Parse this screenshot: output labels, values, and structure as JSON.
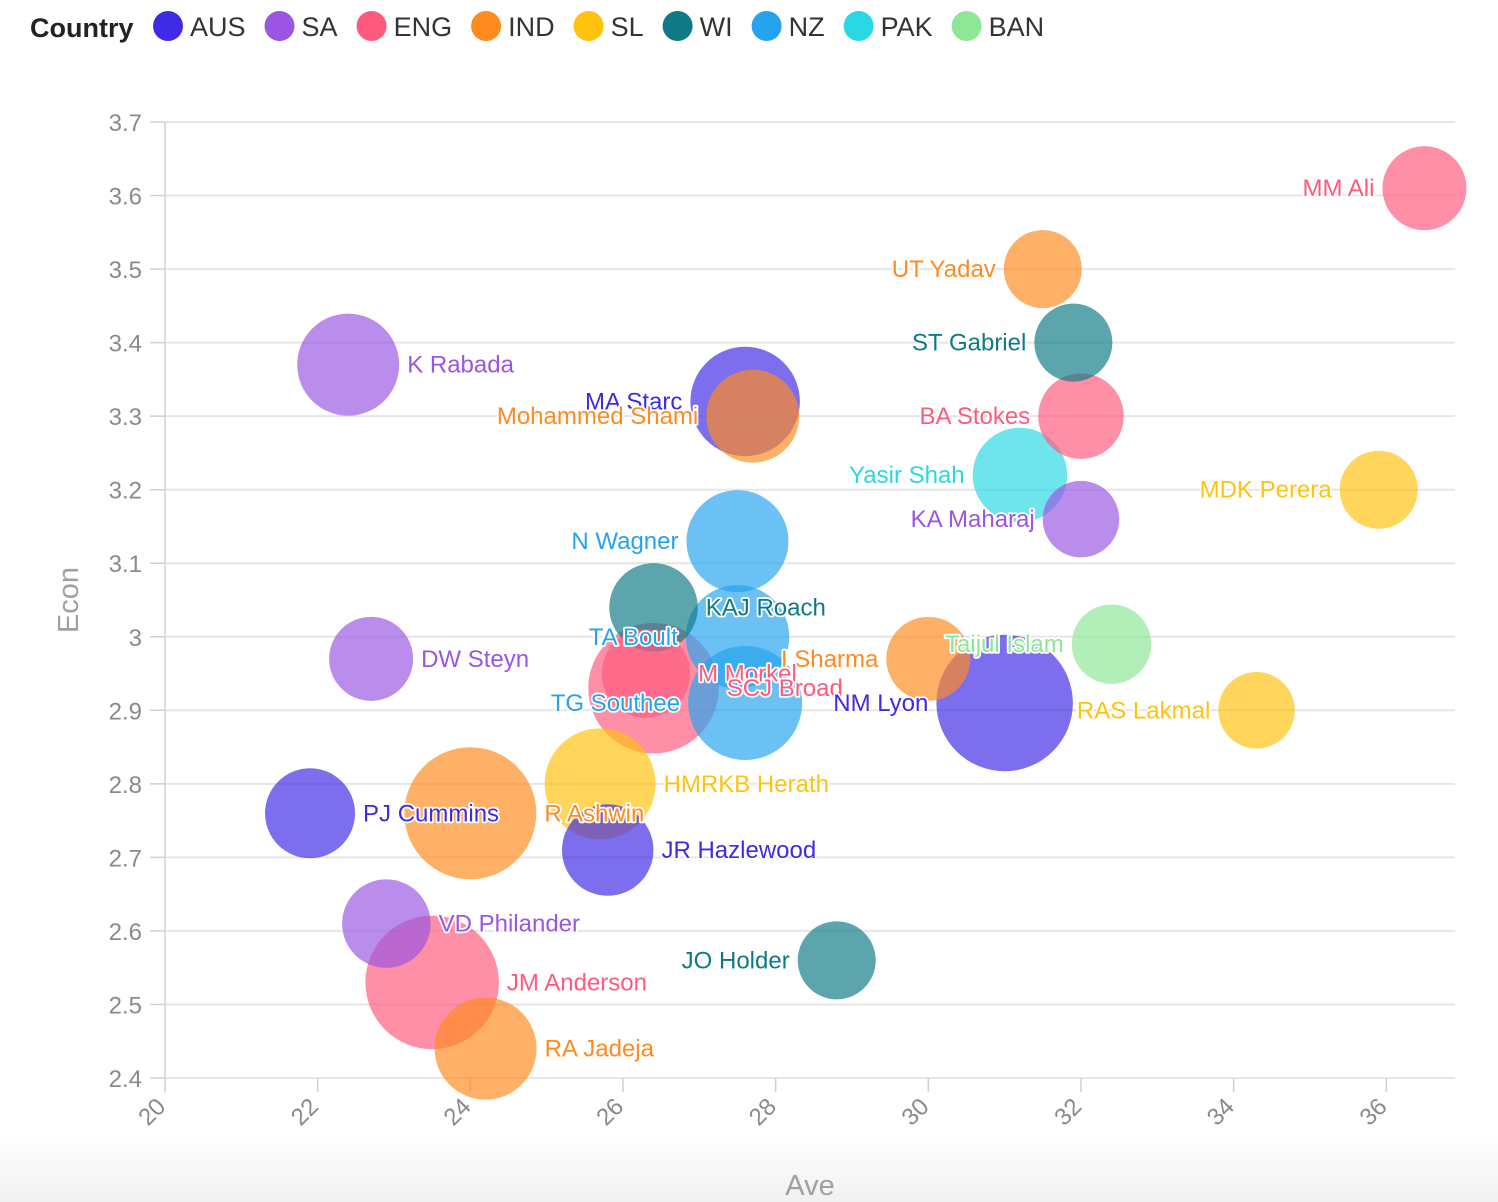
{
  "legend": {
    "title": "Country",
    "items": [
      {
        "label": "AUS",
        "color": "#3f2ae6"
      },
      {
        "label": "SA",
        "color": "#9a55e3"
      },
      {
        "label": "ENG",
        "color": "#ff5a7e"
      },
      {
        "label": "IND",
        "color": "#ff8a1f"
      },
      {
        "label": "SL",
        "color": "#ffc20e"
      },
      {
        "label": "WI",
        "color": "#0f7a85"
      },
      {
        "label": "NZ",
        "color": "#25a3ee"
      },
      {
        "label": "PAK",
        "color": "#2ad8e3"
      },
      {
        "label": "BAN",
        "color": "#8ee697"
      }
    ]
  },
  "chart_data": {
    "type": "scatter",
    "xlabel": "Ave",
    "ylabel": "Econ",
    "xlim": [
      20,
      36.9
    ],
    "ylim": [
      2.4,
      3.7
    ],
    "x_ticks": [
      "20",
      "22",
      "24",
      "26",
      "28",
      "30",
      "32",
      "34",
      "36"
    ],
    "y_ticks": [
      "2.4",
      "2.5",
      "2.6",
      "2.7",
      "2.8",
      "2.9",
      "3",
      "3.1",
      "3.2",
      "3.3",
      "3.4",
      "3.5",
      "3.6",
      "3.7"
    ],
    "grid": "horizontal",
    "legend_position": "top",
    "points": [
      {
        "label": "MM Ali",
        "country": "ENG",
        "x": 36.5,
        "y": 3.61,
        "size": 5.6,
        "side": "left"
      },
      {
        "label": "UT Yadav",
        "country": "IND",
        "x": 31.5,
        "y": 3.5,
        "size": 5.2,
        "side": "left"
      },
      {
        "label": "ST Gabriel",
        "country": "WI",
        "x": 31.9,
        "y": 3.4,
        "size": 5.2,
        "side": "left"
      },
      {
        "label": "K Rabada",
        "country": "SA",
        "x": 22.4,
        "y": 3.37,
        "size": 6.8,
        "side": "right"
      },
      {
        "label": "MA Starc",
        "country": "AUS",
        "x": 27.6,
        "y": 3.32,
        "size": 7.3,
        "side": "left"
      },
      {
        "label": "Mohammed Shami",
        "country": "IND",
        "x": 27.7,
        "y": 3.3,
        "size": 6.2,
        "side": "left"
      },
      {
        "label": "BA Stokes",
        "country": "ENG",
        "x": 32.0,
        "y": 3.3,
        "size": 5.7,
        "side": "left"
      },
      {
        "label": "Yasir Shah",
        "country": "PAK",
        "x": 31.2,
        "y": 3.22,
        "size": 6.3,
        "side": "left"
      },
      {
        "label": "MDK Perera",
        "country": "SL",
        "x": 35.9,
        "y": 3.2,
        "size": 5.2,
        "side": "left"
      },
      {
        "label": "KA Maharaj",
        "country": "SA",
        "x": 32.0,
        "y": 3.16,
        "size": 5.1,
        "side": "left"
      },
      {
        "label": "N Wagner",
        "country": "NZ",
        "x": 27.5,
        "y": 3.13,
        "size": 6.8,
        "side": "left"
      },
      {
        "label": "KAJ Roach",
        "country": "WI",
        "x": 26.4,
        "y": 3.04,
        "size": 5.9,
        "side": "right"
      },
      {
        "label": "TA Boult",
        "country": "NZ",
        "x": 27.5,
        "y": 3.0,
        "size": 6.9,
        "side": "left"
      },
      {
        "label": "Taijul Islam",
        "country": "BAN",
        "x": 32.4,
        "y": 2.99,
        "size": 5.3,
        "side": "left"
      },
      {
        "label": "DW Steyn",
        "country": "SA",
        "x": 22.7,
        "y": 2.97,
        "size": 5.6,
        "side": "right"
      },
      {
        "label": "I Sharma",
        "country": "IND",
        "x": 30.0,
        "y": 2.97,
        "size": 5.6,
        "side": "left"
      },
      {
        "label": "M Morkel",
        "country": "ENG",
        "x": 26.3,
        "y": 2.95,
        "size": 5.9,
        "side": "right"
      },
      {
        "label": "SCJ Broad",
        "country": "ENG",
        "x": 26.4,
        "y": 2.93,
        "size": 8.7,
        "side": "right"
      },
      {
        "label": "NM Lyon",
        "country": "AUS",
        "x": 31.0,
        "y": 2.91,
        "size": 9.1,
        "side": "left"
      },
      {
        "label": "TG Southee",
        "country": "NZ",
        "x": 27.6,
        "y": 2.91,
        "size": 7.6,
        "side": "left"
      },
      {
        "label": "RAS Lakmal",
        "country": "SL",
        "x": 34.3,
        "y": 2.9,
        "size": 5.1,
        "side": "left"
      },
      {
        "label": "HMRKB Herath",
        "country": "SL",
        "x": 25.7,
        "y": 2.8,
        "size": 7.4,
        "side": "right"
      },
      {
        "label": "PJ Cummins",
        "country": "AUS",
        "x": 21.9,
        "y": 2.76,
        "size": 6.0,
        "side": "right"
      },
      {
        "label": "R Ashwin",
        "country": "IND",
        "x": 24.0,
        "y": 2.76,
        "size": 8.8,
        "side": "right"
      },
      {
        "label": "JR Hazlewood",
        "country": "AUS",
        "x": 25.8,
        "y": 2.71,
        "size": 6.1,
        "side": "right"
      },
      {
        "label": "VD Philander",
        "country": "SA",
        "x": 22.9,
        "y": 2.61,
        "size": 5.9,
        "side": "right"
      },
      {
        "label": "JO Holder",
        "country": "WI",
        "x": 28.8,
        "y": 2.56,
        "size": 5.2,
        "side": "left"
      },
      {
        "label": "JM Anderson",
        "country": "ENG",
        "x": 23.5,
        "y": 2.53,
        "size": 8.9,
        "side": "right"
      },
      {
        "label": "RA Jadeja",
        "country": "IND",
        "x": 24.2,
        "y": 2.44,
        "size": 6.8,
        "side": "right"
      }
    ]
  }
}
